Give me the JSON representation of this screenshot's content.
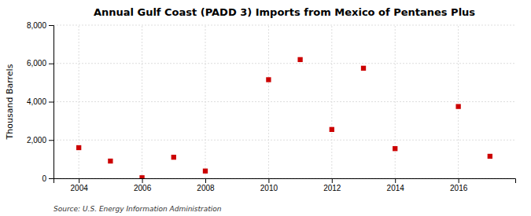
{
  "chart_data": {
    "type": "scatter",
    "title": "Annual Gulf Coast (PADD 3) Imports from Mexico of Pentanes Plus",
    "ylabel": "Thousand Barrels",
    "source": "Source: U.S. Energy Information Administration",
    "x": [
      2004,
      2005,
      2006,
      2007,
      2008,
      2010,
      2011,
      2012,
      2013,
      2014,
      2016,
      2017
    ],
    "values": [
      1600,
      900,
      30,
      1100,
      380,
      5150,
      6200,
      2550,
      5750,
      1550,
      3750,
      1150
    ],
    "color": "#CC0000",
    "marker": "square",
    "xlim": [
      2003.2,
      2017.8
    ],
    "ylim": [
      0,
      8000
    ],
    "xticks": [
      2004,
      2006,
      2008,
      2010,
      2012,
      2014,
      2016
    ],
    "yticks": [
      0,
      {
        "value": 2000,
        "label": "2,000"
      },
      {
        "value": 4000,
        "label": "4,000"
      },
      {
        "value": 6000,
        "label": "6,000"
      },
      {
        "value": 8000,
        "label": "8,000"
      }
    ],
    "grid": true
  }
}
